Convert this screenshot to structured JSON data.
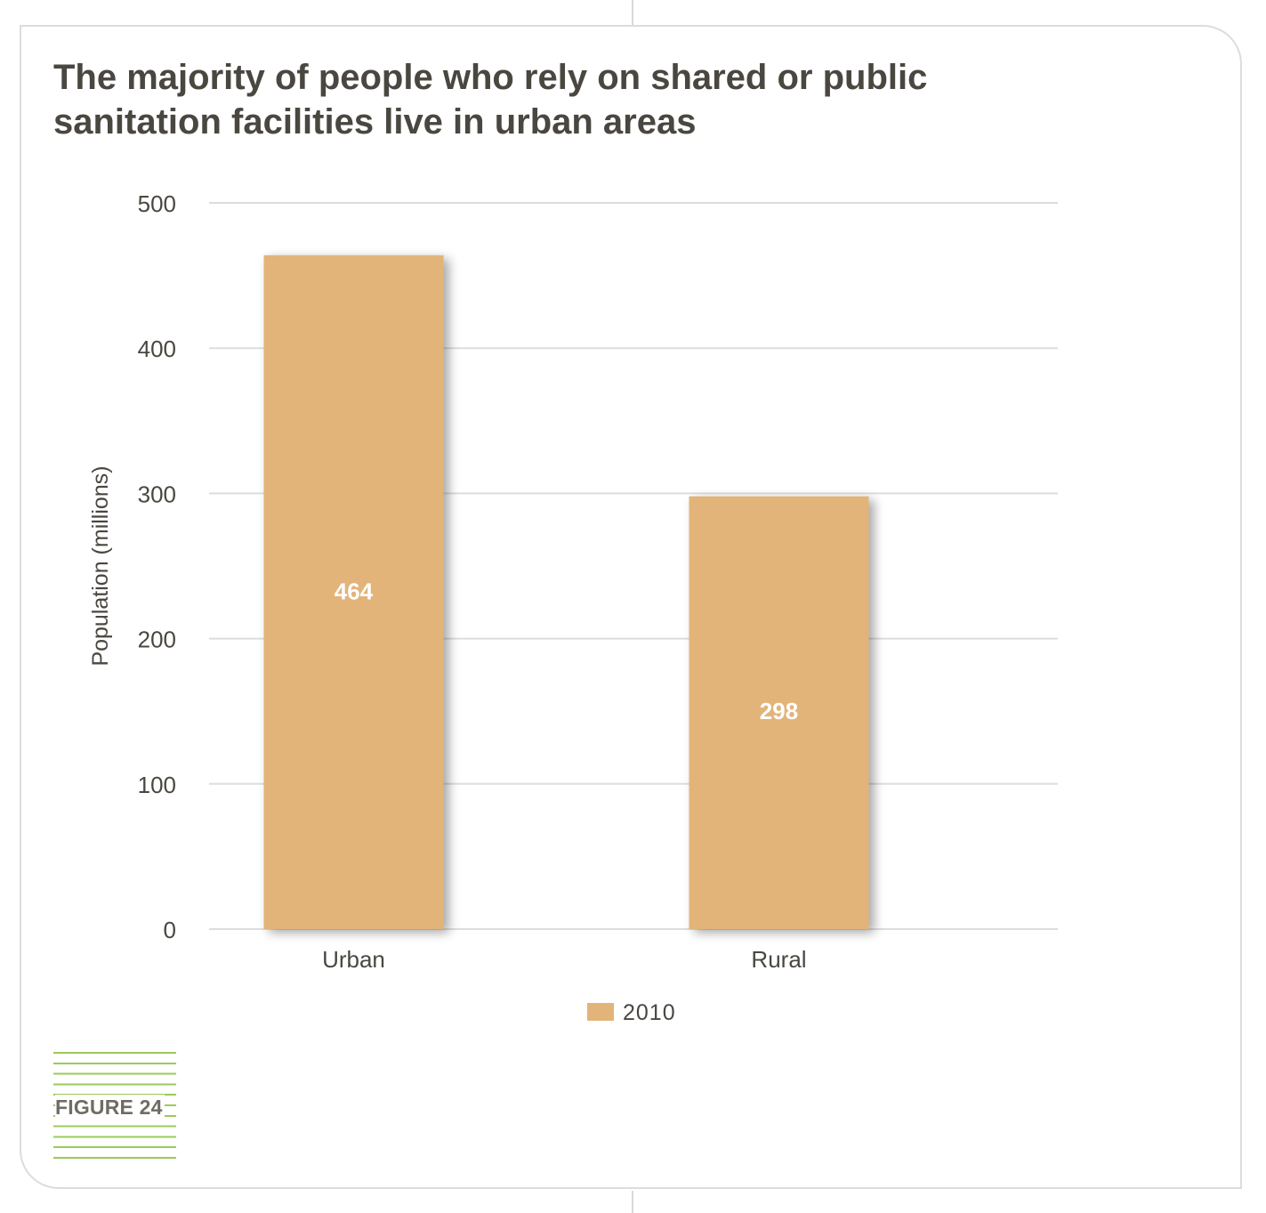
{
  "title": "The majority of people who rely on shared or public sanitation facilities live in urban areas",
  "figure_label": "FIGURE 24",
  "colors": {
    "bar": "#e2b47a",
    "bar_label": "#ffffff",
    "grid": "#dddddd",
    "text": "#4a4741",
    "accent": "#9acb5a"
  },
  "chart_data": {
    "type": "bar",
    "categories": [
      "Urban",
      "Rural"
    ],
    "series": [
      {
        "name": "2010",
        "values": [
          464,
          298
        ]
      }
    ],
    "data_labels": [
      "464",
      "298"
    ],
    "title": "The majority of people who rely on shared or public sanitation facilities live in urban areas",
    "xlabel": "",
    "ylabel": "Population (millions)",
    "ylim": [
      0,
      500
    ],
    "yticks": [
      0,
      100,
      200,
      300,
      400,
      500
    ],
    "grid": true,
    "legend": "bottom"
  }
}
